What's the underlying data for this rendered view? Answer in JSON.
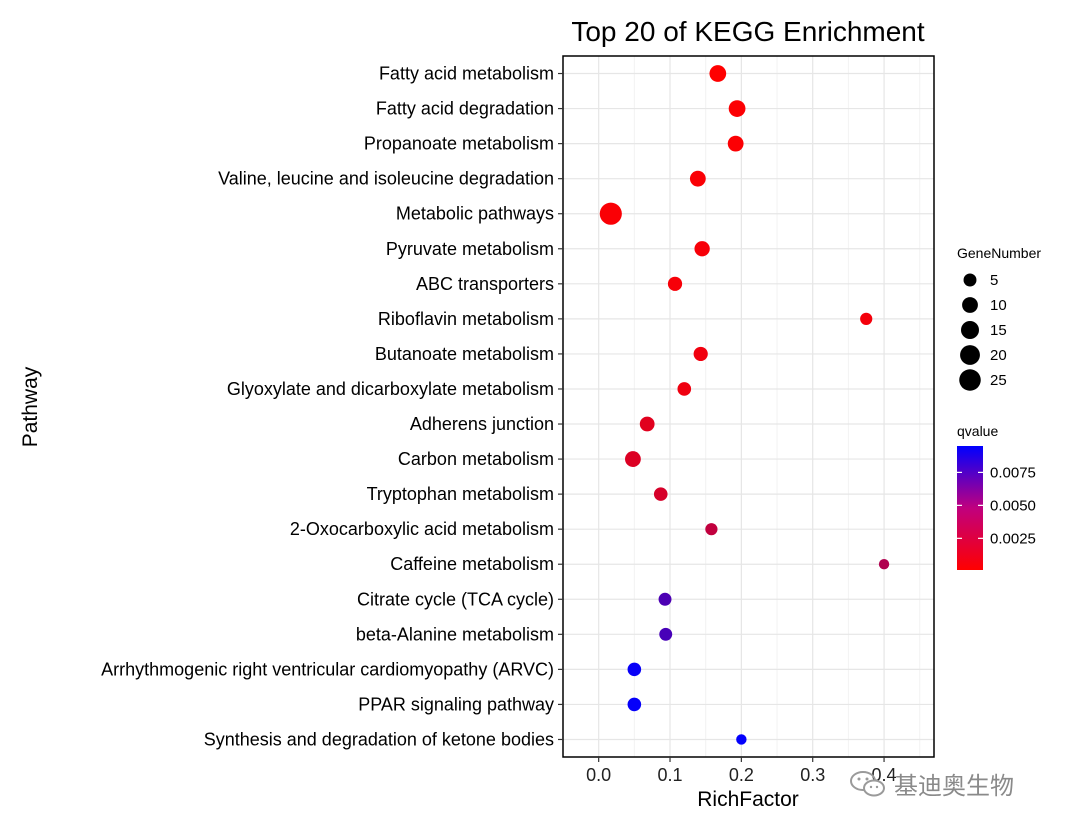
{
  "chart_data": {
    "type": "scatter",
    "title": "Top 20 of KEGG Enrichment",
    "xlabel": "RichFactor",
    "ylabel": "Pathway",
    "xlim": [
      -0.05,
      0.47
    ],
    "xticks": [
      0.0,
      0.1,
      0.2,
      0.3,
      0.4
    ],
    "xtick_labels": [
      "0.0",
      "0.1",
      "0.2",
      "0.3",
      "0.4"
    ],
    "grid": true,
    "points": [
      {
        "pathway": "Fatty acid metabolism",
        "rich_factor": 0.167,
        "gene_number": 12,
        "qvalue": 0.0001
      },
      {
        "pathway": "Fatty acid degradation",
        "rich_factor": 0.194,
        "gene_number": 12,
        "qvalue": 0.0002
      },
      {
        "pathway": "Propanoate metabolism",
        "rich_factor": 0.192,
        "gene_number": 10,
        "qvalue": 0.0002
      },
      {
        "pathway": "Valine, leucine and isoleucine degradation",
        "rich_factor": 0.139,
        "gene_number": 10,
        "qvalue": 0.0003
      },
      {
        "pathway": "Metabolic pathways",
        "rich_factor": 0.017,
        "gene_number": 27,
        "qvalue": 0.0003
      },
      {
        "pathway": "Pyruvate metabolism",
        "rich_factor": 0.145,
        "gene_number": 9,
        "qvalue": 0.0004
      },
      {
        "pathway": "ABC transporters",
        "rich_factor": 0.107,
        "gene_number": 7,
        "qvalue": 0.0004
      },
      {
        "pathway": "Riboflavin metabolism",
        "rich_factor": 0.375,
        "gene_number": 4,
        "qvalue": 0.0005
      },
      {
        "pathway": "Butanoate metabolism",
        "rich_factor": 0.143,
        "gene_number": 7,
        "qvalue": 0.0006
      },
      {
        "pathway": "Glyoxylate and dicarboxylate metabolism",
        "rich_factor": 0.12,
        "gene_number": 6,
        "qvalue": 0.0007
      },
      {
        "pathway": "Adherens junction",
        "rich_factor": 0.068,
        "gene_number": 8,
        "qvalue": 0.0012
      },
      {
        "pathway": "Carbon metabolism",
        "rich_factor": 0.048,
        "gene_number": 10,
        "qvalue": 0.0014
      },
      {
        "pathway": "Tryptophan metabolism",
        "rich_factor": 0.087,
        "gene_number": 6,
        "qvalue": 0.0016
      },
      {
        "pathway": "2-Oxocarboxylic acid metabolism",
        "rich_factor": 0.158,
        "gene_number": 4,
        "qvalue": 0.0024
      },
      {
        "pathway": "Caffeine metabolism",
        "rich_factor": 0.4,
        "gene_number": 2,
        "qvalue": 0.003
      },
      {
        "pathway": "Citrate cycle (TCA cycle)",
        "rich_factor": 0.093,
        "gene_number": 5,
        "qvalue": 0.0067
      },
      {
        "pathway": "beta-Alanine metabolism",
        "rich_factor": 0.094,
        "gene_number": 5,
        "qvalue": 0.0069
      },
      {
        "pathway": "Arrhythmogenic right ventricular cardiomyopathy (ARVC)",
        "rich_factor": 0.05,
        "gene_number": 6,
        "qvalue": 0.0092
      },
      {
        "pathway": "PPAR signaling pathway",
        "rich_factor": 0.05,
        "gene_number": 6,
        "qvalue": 0.0093
      },
      {
        "pathway": "Synthesis and degradation of ketone bodies",
        "rich_factor": 0.2,
        "gene_number": 2,
        "qvalue": 0.0094
      }
    ],
    "size_legend": {
      "title": "GeneNumber",
      "placement": "right",
      "values": [
        5,
        10,
        15,
        20,
        25
      ],
      "labels": [
        "5",
        "10",
        "15",
        "20",
        "25"
      ]
    },
    "color_legend": {
      "title": "qvalue",
      "placement": "right",
      "range": [
        0.0001,
        0.0095
      ],
      "ticks": [
        0.0025,
        0.005,
        0.0075
      ],
      "tick_labels": [
        "0.0025",
        "0.0050",
        "0.0075"
      ],
      "color_low": "#ff0000",
      "color_high": "#0000ff"
    }
  },
  "watermark": {
    "text": "基迪奥生物",
    "logo": "wechat-logo-icon"
  }
}
